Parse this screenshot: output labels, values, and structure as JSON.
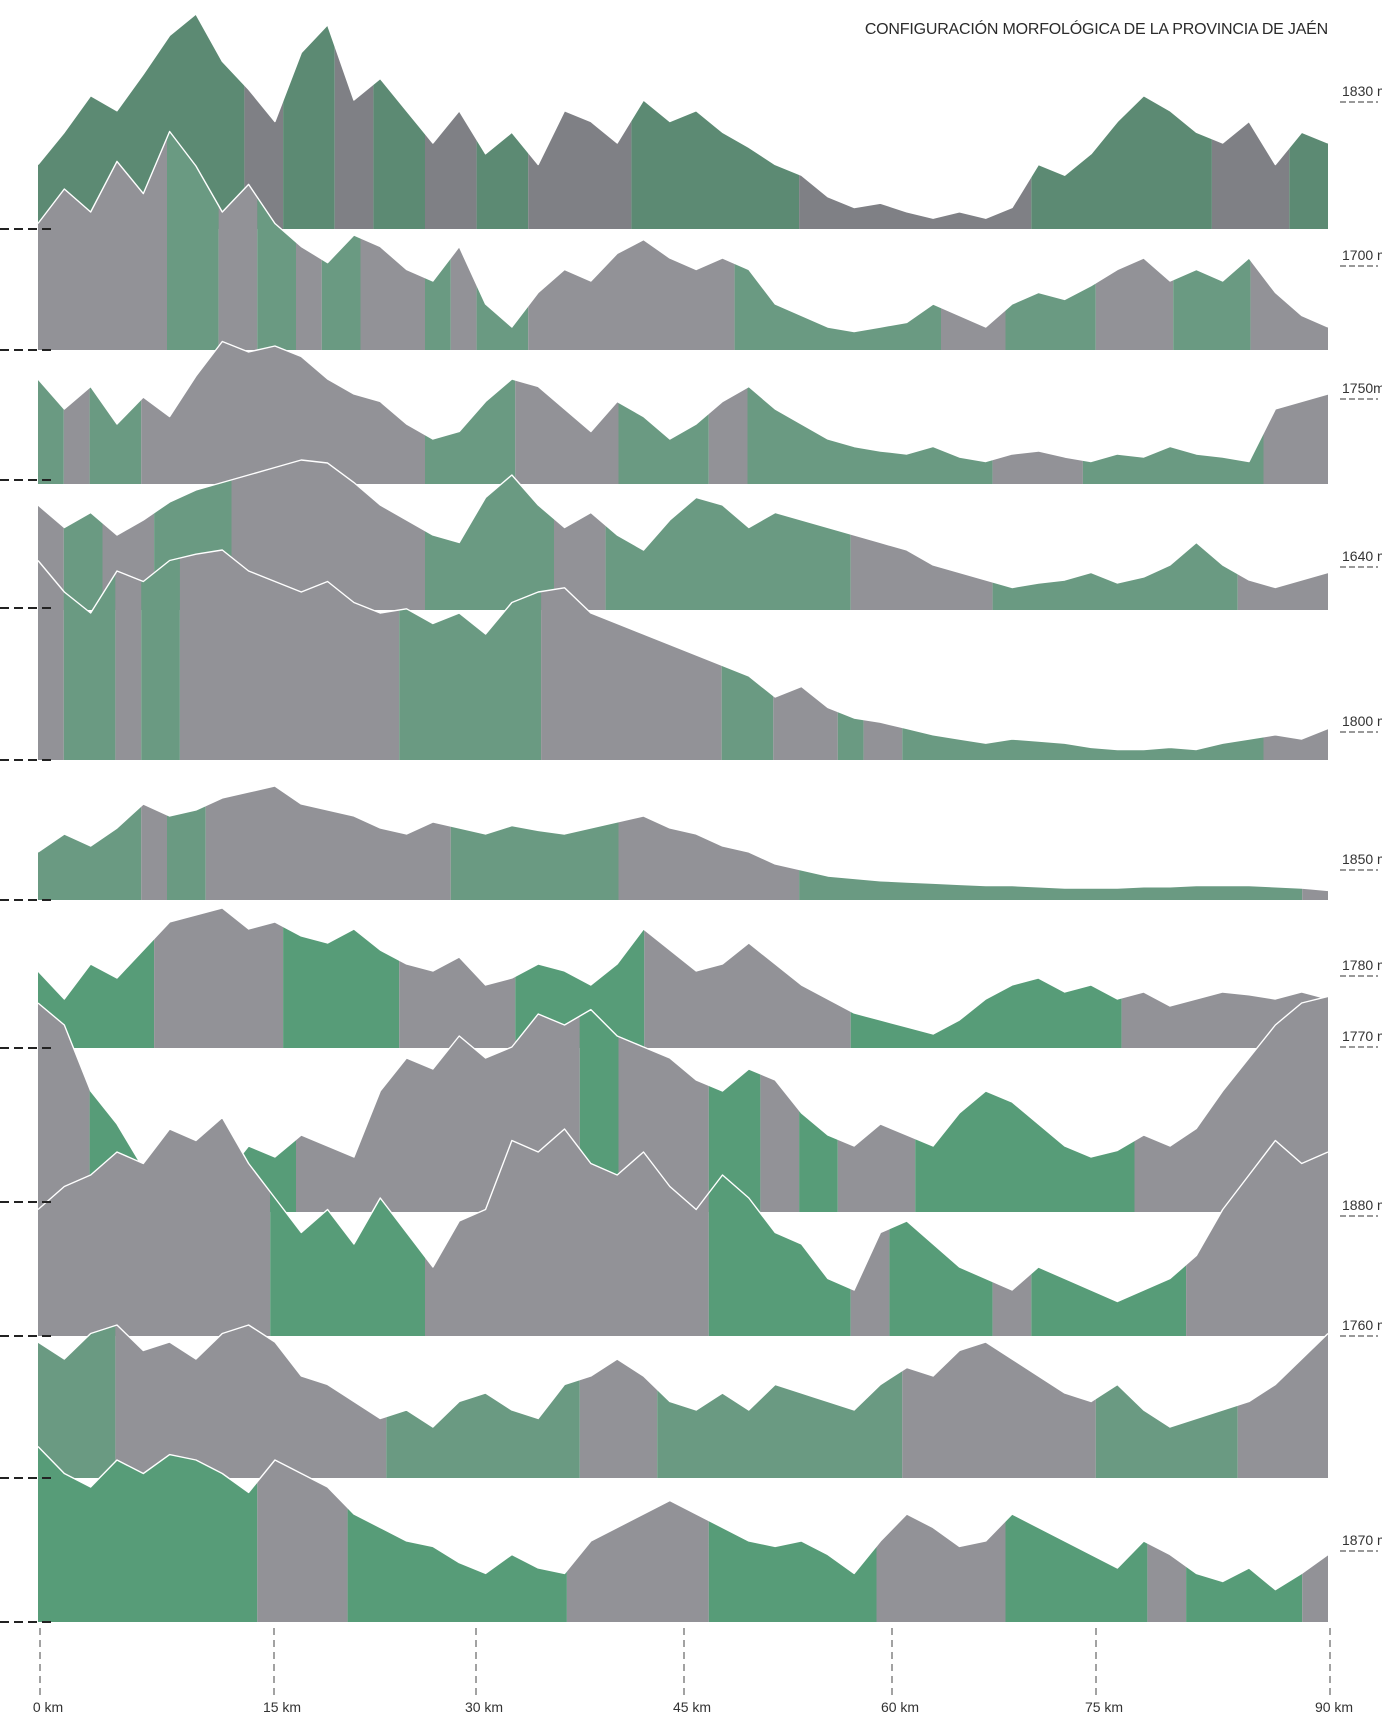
{
  "title": "CONFIGURACIÓN MORFOLÓGICA  DE LA PROVINCIA DE JAÉN",
  "colors": {
    "gray": "#929297",
    "gray_dark": "#7f8085",
    "green": "#6a9a82",
    "green_bright": "#579c78",
    "outline": "#ffffff",
    "guide": "#222222"
  },
  "axis": {
    "x_range_km": [
      0,
      90
    ],
    "tick_labels": [
      "0 km",
      "15 km",
      "30 km",
      "45 km",
      "60 km",
      "75 km",
      "90 km"
    ]
  },
  "elevation_labels": [
    "1830 m",
    "1700 m",
    "1750m",
    "1640 m",
    "1800 m",
    "1850 m",
    "1780 m",
    "1770 m",
    "1880 m",
    "1760 m",
    "1870 m"
  ],
  "profiles": [
    {
      "peaks": [
        0.3,
        0.45,
        0.62,
        0.55,
        0.72,
        0.9,
        1.0,
        0.78,
        0.65,
        0.5,
        0.82,
        0.95,
        0.6,
        0.7,
        0.55,
        0.4,
        0.55,
        0.35,
        0.45,
        0.3,
        0.55,
        0.5,
        0.4,
        0.6,
        0.5,
        0.55,
        0.45,
        0.38,
        0.3,
        0.25,
        0.15,
        0.1,
        0.12,
        0.08,
        0.05,
        0.08,
        0.05,
        0.1,
        0.3,
        0.25,
        0.35,
        0.5,
        0.62,
        0.55,
        0.45,
        0.4,
        0.5,
        0.3,
        0.45,
        0.4
      ],
      "segments": [
        [
          "g",
          0,
          0.16
        ],
        [
          "n",
          0.16,
          0.19
        ],
        [
          "g",
          0.19,
          0.23
        ],
        [
          "n",
          0.23,
          0.26
        ],
        [
          "g",
          0.26,
          0.3
        ],
        [
          "n",
          0.3,
          0.34
        ],
        [
          "g",
          0.34,
          0.38
        ],
        [
          "n",
          0.38,
          0.46
        ],
        [
          "g",
          0.46,
          0.59
        ],
        [
          "n",
          0.59,
          0.77
        ],
        [
          "g",
          0.77,
          0.91
        ],
        [
          "n",
          0.91,
          0.97
        ],
        [
          "g",
          0.97,
          1
        ]
      ],
      "dark": true
    },
    {
      "peaks": [
        0.55,
        0.7,
        0.6,
        0.82,
        0.68,
        0.95,
        0.8,
        0.6,
        0.72,
        0.55,
        0.45,
        0.38,
        0.5,
        0.45,
        0.35,
        0.3,
        0.45,
        0.2,
        0.1,
        0.25,
        0.35,
        0.3,
        0.42,
        0.48,
        0.4,
        0.35,
        0.4,
        0.35,
        0.2,
        0.15,
        0.1,
        0.08,
        0.1,
        0.12,
        0.2,
        0.15,
        0.1,
        0.2,
        0.25,
        0.22,
        0.28,
        0.35,
        0.4,
        0.3,
        0.35,
        0.3,
        0.4,
        0.25,
        0.15,
        0.1
      ],
      "segments": [
        [
          "n",
          0,
          0.1
        ],
        [
          "g",
          0.1,
          0.14
        ],
        [
          "n",
          0.14,
          0.17
        ],
        [
          "g",
          0.17,
          0.2
        ],
        [
          "n",
          0.2,
          0.22
        ],
        [
          "g",
          0.22,
          0.25
        ],
        [
          "n",
          0.25,
          0.3
        ],
        [
          "g",
          0.3,
          0.32
        ],
        [
          "n",
          0.32,
          0.34
        ],
        [
          "g",
          0.34,
          0.38
        ],
        [
          "n",
          0.38,
          0.54
        ],
        [
          "g",
          0.54,
          0.7
        ],
        [
          "n",
          0.7,
          0.75
        ],
        [
          "g",
          0.75,
          0.82
        ],
        [
          "n",
          0.82,
          0.88
        ],
        [
          "g",
          0.88,
          0.94
        ],
        [
          "n",
          0.94,
          1
        ]
      ]
    },
    {
      "peaks": [
        0.7,
        0.5,
        0.65,
        0.4,
        0.58,
        0.45,
        0.72,
        0.95,
        0.88,
        0.92,
        0.85,
        0.7,
        0.6,
        0.55,
        0.4,
        0.3,
        0.35,
        0.55,
        0.7,
        0.65,
        0.5,
        0.35,
        0.55,
        0.45,
        0.3,
        0.4,
        0.55,
        0.65,
        0.5,
        0.4,
        0.3,
        0.25,
        0.22,
        0.2,
        0.25,
        0.18,
        0.15,
        0.2,
        0.22,
        0.18,
        0.15,
        0.2,
        0.18,
        0.25,
        0.2,
        0.18,
        0.15,
        0.5,
        0.55,
        0.6
      ],
      "segments": [
        [
          "g",
          0,
          0.02
        ],
        [
          "n",
          0.02,
          0.04
        ],
        [
          "g",
          0.04,
          0.08
        ],
        [
          "n",
          0.08,
          0.3
        ],
        [
          "g",
          0.3,
          0.37
        ],
        [
          "n",
          0.37,
          0.45
        ],
        [
          "g",
          0.45,
          0.52
        ],
        [
          "n",
          0.52,
          0.55
        ],
        [
          "g",
          0.55,
          0.74
        ],
        [
          "n",
          0.74,
          0.81
        ],
        [
          "g",
          0.81,
          0.95
        ],
        [
          "n",
          0.95,
          1
        ]
      ]
    },
    {
      "peaks": [
        0.7,
        0.55,
        0.65,
        0.5,
        0.6,
        0.72,
        0.8,
        0.85,
        0.9,
        0.95,
        1.0,
        0.98,
        0.85,
        0.7,
        0.6,
        0.5,
        0.45,
        0.75,
        0.9,
        0.7,
        0.55,
        0.65,
        0.5,
        0.4,
        0.6,
        0.75,
        0.7,
        0.55,
        0.65,
        0.6,
        0.55,
        0.5,
        0.45,
        0.4,
        0.3,
        0.25,
        0.2,
        0.15,
        0.18,
        0.2,
        0.25,
        0.18,
        0.22,
        0.3,
        0.45,
        0.3,
        0.2,
        0.15,
        0.2,
        0.25
      ],
      "segments": [
        [
          "n",
          0,
          0.02
        ],
        [
          "g",
          0.02,
          0.05
        ],
        [
          "n",
          0.05,
          0.09
        ],
        [
          "g",
          0.09,
          0.15
        ],
        [
          "n",
          0.15,
          0.3
        ],
        [
          "g",
          0.3,
          0.4
        ],
        [
          "n",
          0.4,
          0.44
        ],
        [
          "g",
          0.44,
          0.63
        ],
        [
          "n",
          0.63,
          0.74
        ],
        [
          "g",
          0.74,
          0.93
        ],
        [
          "n",
          0.93,
          1
        ]
      ]
    },
    {
      "peaks": [
        0.95,
        0.8,
        0.7,
        0.9,
        0.85,
        0.95,
        0.98,
        1.0,
        0.9,
        0.85,
        0.8,
        0.85,
        0.75,
        0.7,
        0.72,
        0.65,
        0.7,
        0.6,
        0.75,
        0.8,
        0.82,
        0.7,
        0.65,
        0.6,
        0.55,
        0.5,
        0.45,
        0.4,
        0.3,
        0.35,
        0.25,
        0.2,
        0.18,
        0.15,
        0.12,
        0.1,
        0.08,
        0.1,
        0.09,
        0.08,
        0.06,
        0.05,
        0.05,
        0.06,
        0.05,
        0.08,
        0.1,
        0.12,
        0.1,
        0.15
      ],
      "segments": [
        [
          "n",
          0,
          0.02
        ],
        [
          "g",
          0.02,
          0.06
        ],
        [
          "n",
          0.06,
          0.08
        ],
        [
          "g",
          0.08,
          0.11
        ],
        [
          "n",
          0.11,
          0.28
        ],
        [
          "g",
          0.28,
          0.39
        ],
        [
          "n",
          0.39,
          0.53
        ],
        [
          "g",
          0.53,
          0.57
        ],
        [
          "n",
          0.57,
          0.62
        ],
        [
          "g",
          0.62,
          0.64
        ],
        [
          "n",
          0.64,
          0.67
        ],
        [
          "g",
          0.67,
          0.95
        ],
        [
          "n",
          0.95,
          1
        ]
      ]
    },
    {
      "peaks": [
        0.4,
        0.55,
        0.45,
        0.6,
        0.8,
        0.7,
        0.75,
        0.85,
        0.9,
        0.95,
        0.8,
        0.75,
        0.7,
        0.6,
        0.55,
        0.65,
        0.6,
        0.55,
        0.62,
        0.58,
        0.55,
        0.6,
        0.65,
        0.7,
        0.6,
        0.55,
        0.45,
        0.4,
        0.3,
        0.25,
        0.2,
        0.18,
        0.16,
        0.15,
        0.14,
        0.13,
        0.12,
        0.12,
        0.11,
        0.1,
        0.1,
        0.1,
        0.11,
        0.11,
        0.12,
        0.12,
        0.12,
        0.11,
        0.1,
        0.08
      ],
      "segments": [
        [
          "g",
          0,
          0.08
        ],
        [
          "n",
          0.08,
          0.1
        ],
        [
          "g",
          0.1,
          0.13
        ],
        [
          "n",
          0.13,
          0.32
        ],
        [
          "g",
          0.32,
          0.45
        ],
        [
          "n",
          0.45,
          0.59
        ],
        [
          "g",
          0.59,
          0.98
        ],
        [
          "n",
          0.98,
          1
        ]
      ]
    },
    {
      "peaks": [
        0.55,
        0.35,
        0.6,
        0.5,
        0.7,
        0.9,
        0.95,
        1.0,
        0.85,
        0.9,
        0.8,
        0.75,
        0.85,
        0.7,
        0.6,
        0.55,
        0.65,
        0.45,
        0.5,
        0.6,
        0.55,
        0.45,
        0.6,
        0.85,
        0.7,
        0.55,
        0.6,
        0.75,
        0.6,
        0.45,
        0.35,
        0.25,
        0.2,
        0.15,
        0.1,
        0.2,
        0.35,
        0.45,
        0.5,
        0.4,
        0.45,
        0.35,
        0.4,
        0.3,
        0.35,
        0.4,
        0.38,
        0.35,
        0.4,
        0.35
      ],
      "segments": [
        [
          "g",
          0,
          0.09
        ],
        [
          "n",
          0.09,
          0.19
        ],
        [
          "g",
          0.19,
          0.28
        ],
        [
          "n",
          0.28,
          0.37
        ],
        [
          "g",
          0.37,
          0.47
        ],
        [
          "n",
          0.47,
          0.63
        ],
        [
          "g",
          0.63,
          0.84
        ],
        [
          "n",
          0.84,
          1
        ]
      ],
      "bright": true
    },
    {
      "peaks": [
        0.95,
        0.85,
        0.55,
        0.4,
        0.2,
        0.35,
        0.3,
        0.15,
        0.3,
        0.25,
        0.35,
        0.3,
        0.25,
        0.55,
        0.7,
        0.65,
        0.8,
        0.7,
        0.75,
        0.9,
        0.85,
        0.92,
        0.8,
        0.75,
        0.7,
        0.6,
        0.55,
        0.65,
        0.6,
        0.45,
        0.35,
        0.3,
        0.4,
        0.35,
        0.3,
        0.45,
        0.55,
        0.5,
        0.4,
        0.3,
        0.25,
        0.28,
        0.35,
        0.3,
        0.38,
        0.55,
        0.7,
        0.85,
        0.95,
        0.98
      ],
      "segments": [
        [
          "n",
          0,
          0.04
        ],
        [
          "g",
          0.04,
          0.2
        ],
        [
          "n",
          0.2,
          0.42
        ],
        [
          "g",
          0.42,
          0.45
        ],
        [
          "n",
          0.45,
          0.52
        ],
        [
          "g",
          0.52,
          0.56
        ],
        [
          "n",
          0.56,
          0.59
        ],
        [
          "g",
          0.59,
          0.62
        ],
        [
          "n",
          0.62,
          0.68
        ],
        [
          "g",
          0.68,
          0.85
        ],
        [
          "n",
          0.85,
          1
        ]
      ],
      "bright": true
    },
    {
      "peaks": [
        0.55,
        0.65,
        0.7,
        0.8,
        0.75,
        0.9,
        0.85,
        0.95,
        0.75,
        0.6,
        0.45,
        0.55,
        0.4,
        0.6,
        0.45,
        0.3,
        0.5,
        0.55,
        0.85,
        0.8,
        0.9,
        0.75,
        0.7,
        0.8,
        0.65,
        0.55,
        0.7,
        0.6,
        0.45,
        0.4,
        0.25,
        0.2,
        0.45,
        0.5,
        0.4,
        0.3,
        0.25,
        0.2,
        0.3,
        0.25,
        0.2,
        0.15,
        0.2,
        0.25,
        0.35,
        0.55,
        0.7,
        0.85,
        0.75,
        0.8
      ],
      "segments": [
        [
          "n",
          0,
          0.18
        ],
        [
          "g",
          0.18,
          0.3
        ],
        [
          "n",
          0.3,
          0.52
        ],
        [
          "g",
          0.52,
          0.63
        ],
        [
          "n",
          0.63,
          0.66
        ],
        [
          "g",
          0.66,
          0.74
        ],
        [
          "n",
          0.74,
          0.77
        ],
        [
          "g",
          0.77,
          0.89
        ],
        [
          "n",
          0.89,
          1
        ]
      ],
      "bright": true
    },
    {
      "peaks": [
        0.8,
        0.7,
        0.85,
        0.9,
        0.75,
        0.8,
        0.7,
        0.85,
        0.9,
        0.8,
        0.6,
        0.55,
        0.45,
        0.35,
        0.4,
        0.3,
        0.45,
        0.5,
        0.4,
        0.35,
        0.55,
        0.6,
        0.7,
        0.6,
        0.45,
        0.4,
        0.5,
        0.4,
        0.55,
        0.5,
        0.45,
        0.4,
        0.55,
        0.65,
        0.6,
        0.75,
        0.8,
        0.7,
        0.6,
        0.5,
        0.45,
        0.55,
        0.4,
        0.3,
        0.35,
        0.4,
        0.45,
        0.55,
        0.7,
        0.85
      ],
      "segments": [
        [
          "g",
          0,
          0.06
        ],
        [
          "n",
          0.06,
          0.27
        ],
        [
          "g",
          0.27,
          0.42
        ],
        [
          "n",
          0.42,
          0.48
        ],
        [
          "g",
          0.48,
          0.67
        ],
        [
          "n",
          0.67,
          0.82
        ],
        [
          "g",
          0.82,
          0.93
        ],
        [
          "n",
          0.93,
          1
        ]
      ]
    },
    {
      "peaks": [
        0.65,
        0.55,
        0.5,
        0.6,
        0.55,
        0.62,
        0.6,
        0.55,
        0.48,
        0.6,
        0.55,
        0.5,
        0.4,
        0.35,
        0.3,
        0.28,
        0.22,
        0.18,
        0.25,
        0.2,
        0.18,
        0.3,
        0.35,
        0.4,
        0.45,
        0.4,
        0.35,
        0.3,
        0.28,
        0.3,
        0.25,
        0.18,
        0.3,
        0.4,
        0.35,
        0.28,
        0.3,
        0.4,
        0.35,
        0.3,
        0.25,
        0.2,
        0.3,
        0.25,
        0.18,
        0.15,
        0.2,
        0.12,
        0.18,
        0.25
      ],
      "segments": [
        [
          "g",
          0,
          0.17
        ],
        [
          "n",
          0.17,
          0.24
        ],
        [
          "g",
          0.24,
          0.41
        ],
        [
          "n",
          0.41,
          0.52
        ],
        [
          "g",
          0.52,
          0.65
        ],
        [
          "n",
          0.65,
          0.75
        ],
        [
          "g",
          0.75,
          0.86
        ],
        [
          "n",
          0.86,
          0.89
        ],
        [
          "g",
          0.89,
          0.98
        ],
        [
          "n",
          0.98,
          1
        ]
      ],
      "bright": true
    }
  ]
}
